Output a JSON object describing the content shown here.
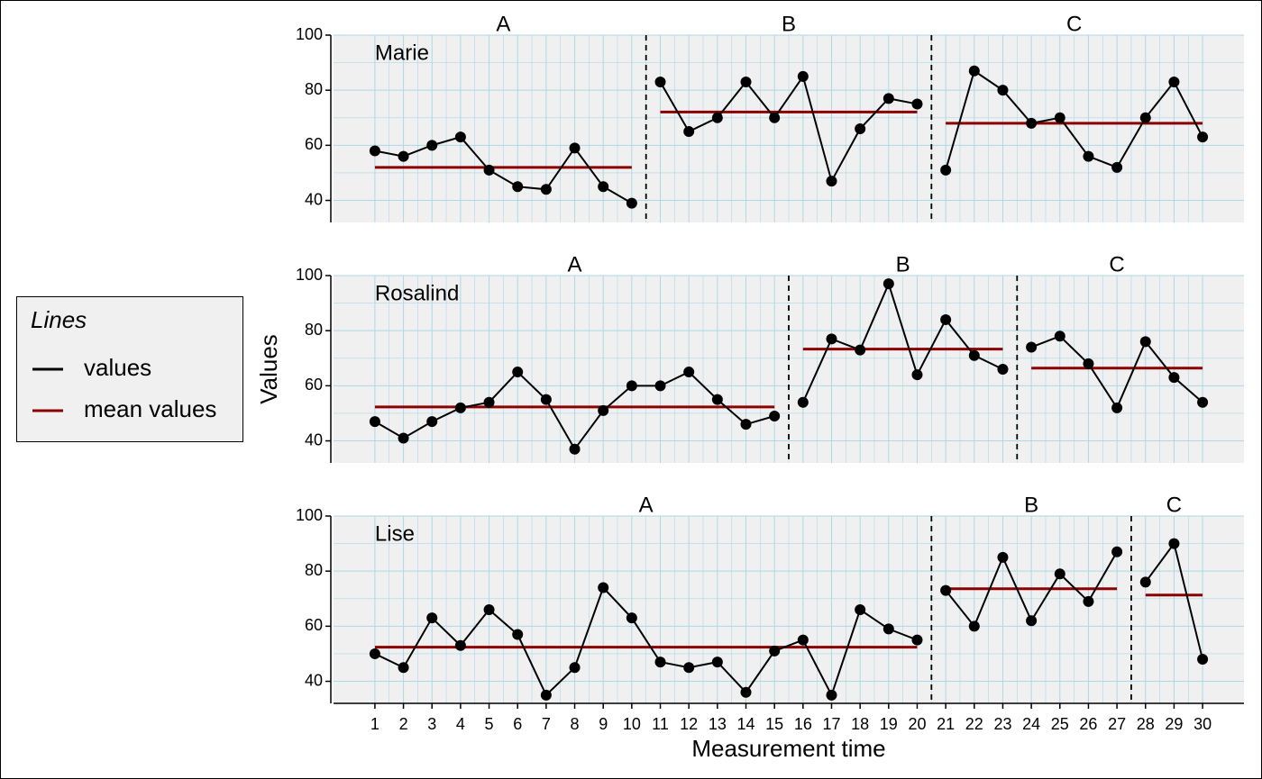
{
  "chart_data": [
    {
      "type": "line",
      "title": "Marie",
      "x": [
        1,
        2,
        3,
        4,
        5,
        6,
        7,
        8,
        9,
        10,
        11,
        12,
        13,
        14,
        15,
        16,
        17,
        18,
        19,
        20,
        21,
        22,
        23,
        24,
        25,
        26,
        27,
        28,
        29,
        30
      ],
      "series": [
        {
          "color": "#000000",
          "values": [
            58,
            56,
            60,
            63,
            51,
            45,
            44,
            59,
            45,
            39,
            83,
            65,
            70,
            83,
            70,
            85,
            47,
            66,
            77,
            75,
            51,
            87,
            80,
            68,
            70,
            56,
            52,
            70,
            83,
            63
          ]
        }
      ],
      "phases": [
        {
          "label": "A",
          "start": 1,
          "end": 10,
          "mean": 52
        },
        {
          "label": "B",
          "start": 11,
          "end": 20,
          "mean": 72.1
        },
        {
          "label": "C",
          "start": 21,
          "end": 30,
          "mean": 68
        }
      ],
      "mean_color": "#8b0000",
      "xlim": [
        -0.45,
        31.45
      ],
      "ylim": [
        32,
        100
      ],
      "xticks": [
        1,
        2,
        3,
        4,
        5,
        6,
        7,
        8,
        9,
        10,
        11,
        12,
        13,
        14,
        15,
        16,
        17,
        18,
        19,
        20,
        21,
        22,
        23,
        24,
        25,
        26,
        27,
        28,
        29,
        30
      ],
      "yticks": [
        40,
        60,
        80,
        100
      ],
      "grid": true,
      "show_xtick_labels": false
    },
    {
      "type": "line",
      "title": "Rosalind",
      "ylabel": "Values",
      "x": [
        1,
        2,
        3,
        4,
        5,
        6,
        7,
        8,
        9,
        10,
        11,
        12,
        13,
        14,
        15,
        16,
        17,
        18,
        19,
        20,
        21,
        22,
        23,
        24,
        25,
        26,
        27,
        28,
        29,
        30
      ],
      "series": [
        {
          "color": "#000000",
          "values": [
            47,
            41,
            47,
            52,
            54,
            65,
            55,
            37,
            51,
            60,
            60,
            65,
            55,
            46,
            49,
            54,
            77,
            73,
            97,
            64,
            84,
            71,
            66,
            74,
            78,
            68,
            52,
            76,
            63,
            54
          ]
        }
      ],
      "phases": [
        {
          "label": "A",
          "start": 1,
          "end": 15,
          "mean": 52.3
        },
        {
          "label": "B",
          "start": 16,
          "end": 23,
          "mean": 73.3
        },
        {
          "label": "C",
          "start": 24,
          "end": 30,
          "mean": 66.4
        }
      ],
      "mean_color": "#8b0000",
      "xlim": [
        -0.45,
        31.45
      ],
      "ylim": [
        32,
        100
      ],
      "xticks": [
        1,
        2,
        3,
        4,
        5,
        6,
        7,
        8,
        9,
        10,
        11,
        12,
        13,
        14,
        15,
        16,
        17,
        18,
        19,
        20,
        21,
        22,
        23,
        24,
        25,
        26,
        27,
        28,
        29,
        30
      ],
      "yticks": [
        40,
        60,
        80,
        100
      ],
      "grid": true,
      "show_xtick_labels": false
    },
    {
      "type": "line",
      "title": "Lise",
      "xlabel": "Measurement time",
      "x": [
        1,
        2,
        3,
        4,
        5,
        6,
        7,
        8,
        9,
        10,
        11,
        12,
        13,
        14,
        15,
        16,
        17,
        18,
        19,
        20,
        21,
        22,
        23,
        24,
        25,
        26,
        27,
        28,
        29,
        30
      ],
      "series": [
        {
          "color": "#000000",
          "values": [
            50,
            45,
            63,
            53,
            66,
            57,
            35,
            45,
            74,
            63,
            47,
            45,
            47,
            36,
            51,
            55,
            35,
            66,
            59,
            55,
            73,
            60,
            85,
            62,
            79,
            69,
            87,
            76,
            90,
            48
          ]
        }
      ],
      "phases": [
        {
          "label": "A",
          "start": 1,
          "end": 20,
          "mean": 52.4
        },
        {
          "label": "B",
          "start": 21,
          "end": 27,
          "mean": 73.6
        },
        {
          "label": "C",
          "start": 28,
          "end": 30,
          "mean": 71.3
        }
      ],
      "mean_color": "#8b0000",
      "xlim": [
        -0.45,
        31.45
      ],
      "ylim": [
        32,
        100
      ],
      "xticks": [
        1,
        2,
        3,
        4,
        5,
        6,
        7,
        8,
        9,
        10,
        11,
        12,
        13,
        14,
        15,
        16,
        17,
        18,
        19,
        20,
        21,
        22,
        23,
        24,
        25,
        26,
        27,
        28,
        29,
        30
      ],
      "yticks": [
        40,
        60,
        80,
        100
      ],
      "grid": true,
      "show_xtick_labels": true
    }
  ],
  "legend": {
    "title": "Lines",
    "entries": [
      "values",
      "mean values"
    ]
  }
}
